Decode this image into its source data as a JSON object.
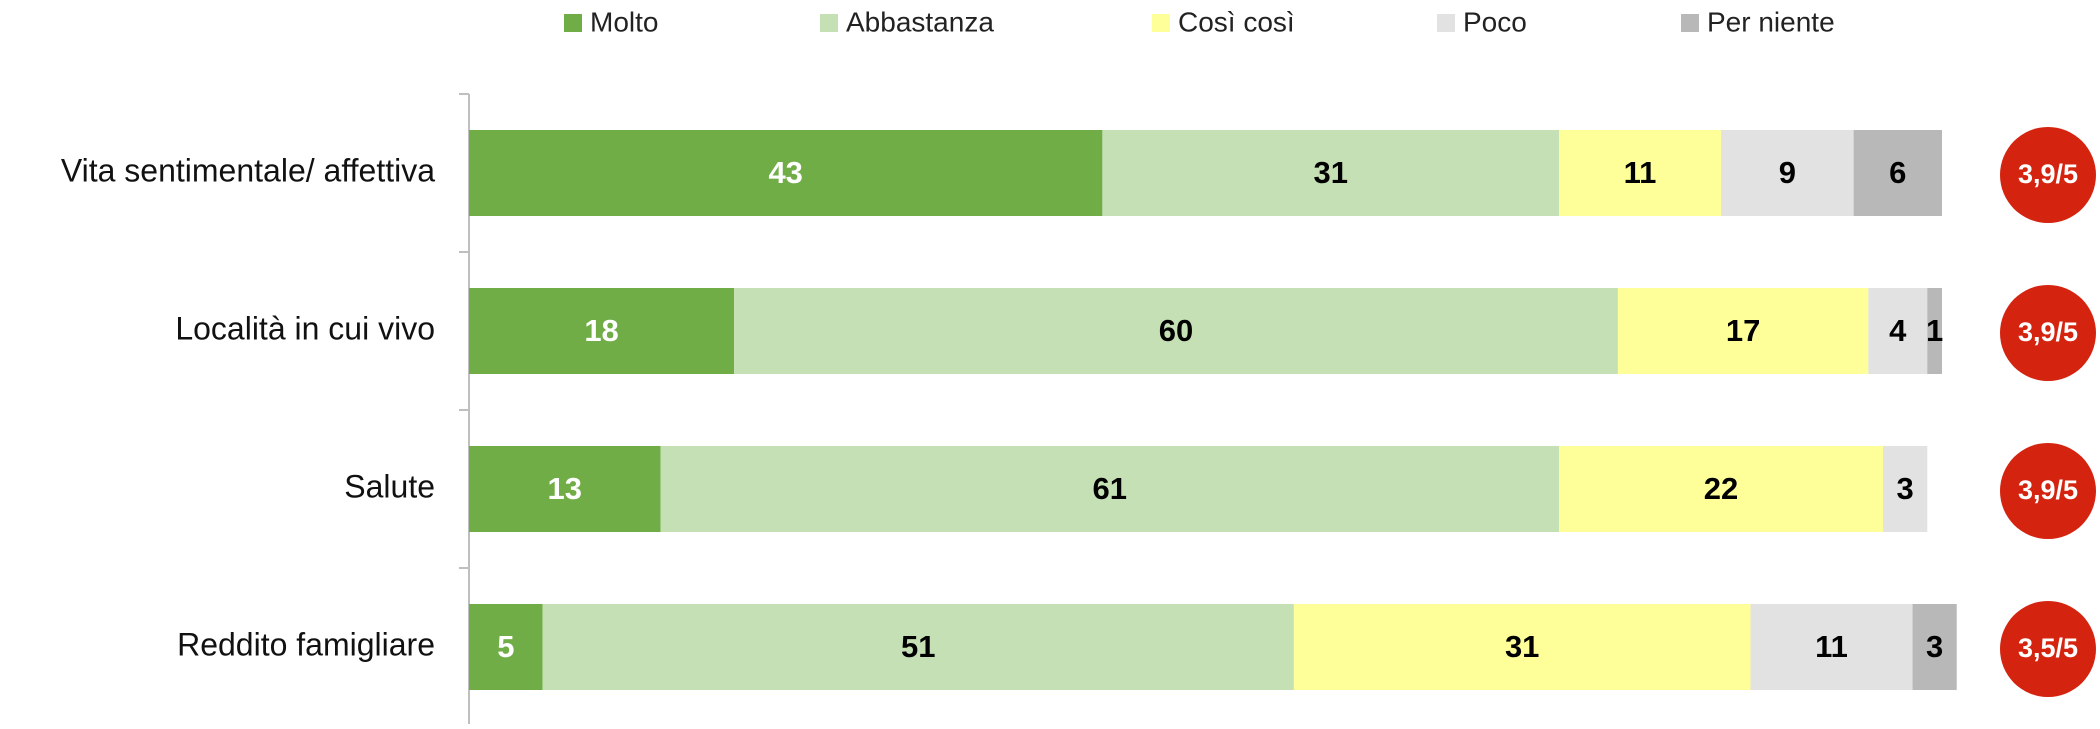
{
  "chart_data": {
    "type": "stacked-bar-horizontal",
    "categories": [
      "Vita sentimentale/ affettiva",
      "Località in cui vivo",
      "Salute",
      "Reddito famigliare"
    ],
    "series": [
      {
        "name": "Molto",
        "color": "#70ad47",
        "label_color": "#ffffff",
        "values": [
          43,
          18,
          13,
          5
        ]
      },
      {
        "name": "Abbastanza",
        "color": "#c5e0b4",
        "label_color": "#000000",
        "values": [
          31,
          60,
          61,
          51
        ]
      },
      {
        "name": "Così così",
        "color": "#ffff99",
        "label_color": "#000000",
        "values": [
          11,
          17,
          22,
          31
        ]
      },
      {
        "name": "Poco",
        "color": "#e2e2e2",
        "label_color": "#000000",
        "values": [
          9,
          4,
          3,
          11
        ]
      },
      {
        "name": "Per niente",
        "color": "#b8b8b8",
        "label_color": "#000000",
        "values": [
          6,
          1,
          null,
          3
        ]
      }
    ],
    "xlim": [
      0,
      100
    ],
    "annotations": [
      "3,9/5",
      "3,9/5",
      "3,9/5",
      "3,5/5"
    ],
    "annotation_color": "#d42410",
    "legend": "top"
  }
}
